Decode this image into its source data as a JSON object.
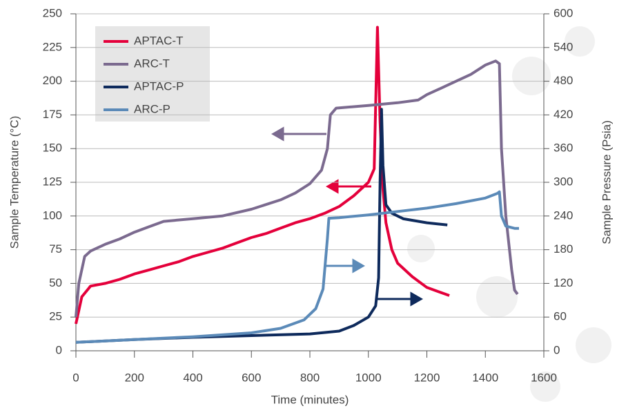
{
  "chart_data": {
    "type": "line",
    "x_label": "Time (minutes)",
    "y_label": "Sample Temperature (°C)",
    "y2_label": "Sample Pressure (Psia)",
    "xlim": [
      0,
      1600
    ],
    "xticks": [
      0,
      200,
      400,
      600,
      800,
      1000,
      1200,
      1400,
      1600
    ],
    "ylim": [
      0,
      250
    ],
    "yticks": [
      0,
      25,
      50,
      75,
      100,
      125,
      150,
      175,
      200,
      225,
      250
    ],
    "y2lim": [
      0,
      600
    ],
    "y2ticks": [
      0,
      60,
      120,
      180,
      240,
      300,
      360,
      420,
      480,
      540,
      600
    ],
    "grid": true,
    "legend": "upper left",
    "series": [
      {
        "name": "APTAC-T",
        "color": "#e4003b",
        "axis": "y",
        "x": [
          0,
          20,
          50,
          100,
          150,
          200,
          250,
          300,
          350,
          400,
          450,
          500,
          550,
          600,
          650,
          700,
          750,
          800,
          850,
          900,
          950,
          1000,
          1020,
          1031,
          1040,
          1050,
          1060,
          1080,
          1100,
          1150,
          1200,
          1277
        ],
        "values": [
          20,
          40,
          48,
          50,
          53,
          57,
          60,
          63,
          66,
          70,
          73,
          76,
          80,
          84,
          87,
          91,
          95,
          98,
          102,
          107,
          115,
          125,
          135,
          240,
          170,
          120,
          95,
          75,
          65,
          55,
          47,
          41
        ]
      },
      {
        "name": "ARC-T",
        "color": "#7b6a8f",
        "axis": "y",
        "x": [
          0,
          10,
          30,
          50,
          100,
          150,
          200,
          250,
          300,
          400,
          500,
          600,
          700,
          750,
          800,
          840,
          860,
          870,
          890,
          1000,
          1100,
          1170,
          1200,
          1250,
          1300,
          1350,
          1400,
          1435,
          1448,
          1455,
          1470,
          1490,
          1500,
          1510
        ],
        "values": [
          25,
          50,
          70,
          74,
          79,
          83,
          88,
          92,
          96,
          98,
          100,
          105,
          112,
          117,
          124,
          134,
          150,
          175,
          180,
          182,
          184,
          186,
          190,
          195,
          200,
          205,
          212,
          215,
          213,
          150,
          100,
          60,
          45,
          42
        ]
      },
      {
        "name": "APTAC-P",
        "color": "#0e2a5c",
        "axis": "y2",
        "x": [
          0,
          200,
          400,
          600,
          800,
          900,
          950,
          1000,
          1025,
          1035,
          1040,
          1045,
          1050,
          1060,
          1080,
          1120,
          1200,
          1270
        ],
        "values": [
          15,
          20,
          24,
          27,
          30,
          35,
          45,
          60,
          80,
          130,
          300,
          430,
          330,
          260,
          245,
          235,
          228,
          224
        ]
      },
      {
        "name": "ARC-P",
        "color": "#5b8ab8",
        "axis": "y2",
        "x": [
          0,
          200,
          400,
          600,
          700,
          780,
          820,
          845,
          860,
          865,
          900,
          1000,
          1100,
          1200,
          1300,
          1400,
          1440,
          1448,
          1455,
          1470,
          1500,
          1515
        ],
        "values": [
          15,
          20,
          25,
          32,
          40,
          55,
          75,
          110,
          200,
          236,
          237,
          242,
          248,
          254,
          262,
          272,
          280,
          283,
          240,
          222,
          218,
          218
        ]
      }
    ]
  }
}
